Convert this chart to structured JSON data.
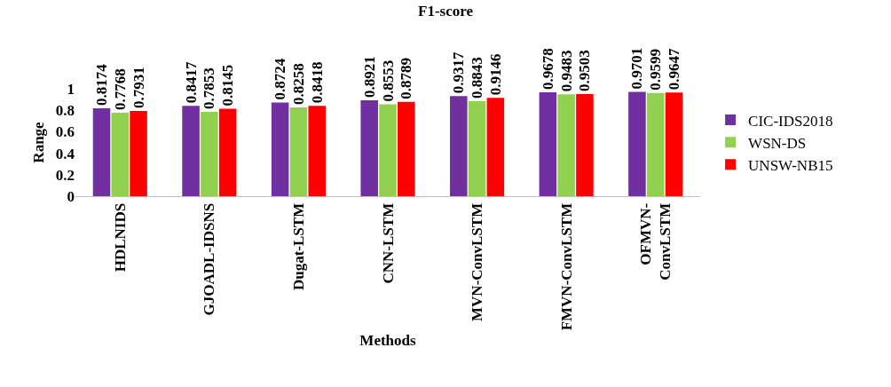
{
  "chart_data": {
    "type": "bar",
    "title": "F1-score",
    "xlabel": "Methods",
    "ylabel": "Range",
    "categories": [
      "HDLNIDS",
      "GJOADL-IDSNS",
      "Dugat-LSTM",
      "CNN-LSTM",
      "MVN-ConvLSTM",
      "FMVN-ConvLSTM",
      "OFMVN-ConvLSTM"
    ],
    "series": [
      {
        "name": "CIC-IDS2018",
        "color": "#7030a0",
        "values": [
          0.8174,
          0.8417,
          0.8724,
          0.8921,
          0.9317,
          0.9678,
          0.9701
        ]
      },
      {
        "name": "WSN-DS",
        "color": "#92d050",
        "values": [
          0.7768,
          0.7853,
          0.8258,
          0.8553,
          0.8843,
          0.9483,
          0.9599
        ]
      },
      {
        "name": "UNSW-NB15",
        "color": "#ff0000",
        "values": [
          0.7931,
          0.8145,
          0.8418,
          0.8789,
          0.9146,
          0.9503,
          0.9647
        ]
      }
    ],
    "ylim": [
      0,
      1
    ],
    "yticks": [
      0,
      0.2,
      0.4,
      0.6,
      0.8,
      1
    ],
    "grid": false,
    "legend": "right",
    "data_labels": true
  }
}
